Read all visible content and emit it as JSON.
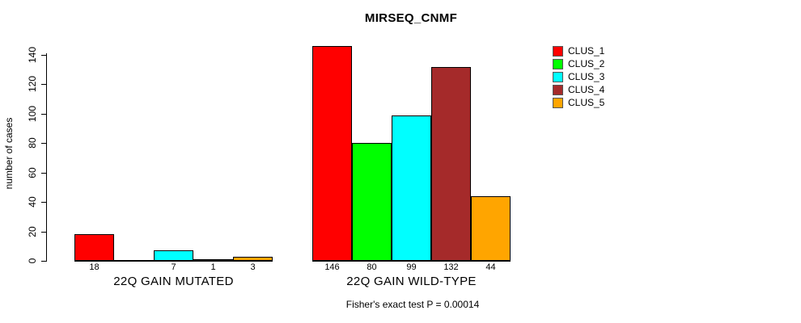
{
  "chart_data": {
    "type": "bar",
    "title": "MIRSEQ_CNMF",
    "ylabel": "number of cases",
    "xlabel": "",
    "ylim": [
      0,
      140
    ],
    "yticks": [
      0,
      20,
      40,
      60,
      80,
      100,
      120,
      140
    ],
    "grid": false,
    "legend_position": "top-right",
    "series": [
      {
        "name": "CLUS_1",
        "color": "#ff0000"
      },
      {
        "name": "CLUS_2",
        "color": "#00ff00"
      },
      {
        "name": "CLUS_3",
        "color": "#00ffff"
      },
      {
        "name": "CLUS_4",
        "color": "#a52a2a"
      },
      {
        "name": "CLUS_5",
        "color": "#ffa500"
      }
    ],
    "groups": [
      {
        "label": "22Q GAIN MUTATED",
        "values": [
          18,
          0,
          7,
          1,
          3
        ],
        "value_labels": [
          "18",
          "",
          "7",
          "1",
          "3"
        ]
      },
      {
        "label": "22Q GAIN WILD-TYPE",
        "values": [
          146,
          80,
          99,
          132,
          44
        ],
        "value_labels": [
          "146",
          "80",
          "99",
          "132",
          "44"
        ]
      }
    ],
    "footnote": "Fisher's exact test P = 0.00014"
  }
}
